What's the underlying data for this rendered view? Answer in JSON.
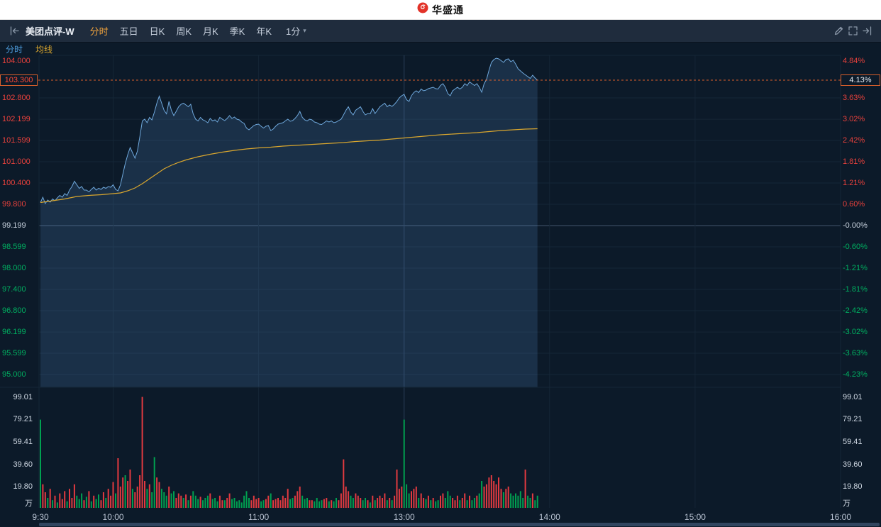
{
  "header": {
    "brand": "华盛通"
  },
  "toolbar": {
    "stock_name": "美团点评-W",
    "tabs": [
      {
        "label": "分时",
        "active": true
      },
      {
        "label": "五日"
      },
      {
        "label": "日K"
      },
      {
        "label": "周K"
      },
      {
        "label": "月K"
      },
      {
        "label": "季K"
      },
      {
        "label": "年K"
      }
    ],
    "period": "1分"
  },
  "legend": {
    "items": [
      {
        "label": "分时",
        "color": "#4e9ddd"
      },
      {
        "label": "均线",
        "color": "#d9a62e"
      }
    ]
  },
  "axes": {
    "prices": [
      {
        "value": 104.0,
        "text": "104.000"
      },
      {
        "value": 102.8,
        "text": "102.800"
      },
      {
        "value": 102.199,
        "text": "102.199"
      },
      {
        "value": 101.599,
        "text": "101.599"
      },
      {
        "value": 101.0,
        "text": "101.000"
      },
      {
        "value": 100.4,
        "text": "100.400"
      },
      {
        "value": 99.8,
        "text": "99.800"
      },
      {
        "value": 99.199,
        "text": "99.199"
      },
      {
        "value": 98.599,
        "text": "98.599"
      },
      {
        "value": 98.0,
        "text": "98.000"
      },
      {
        "value": 97.4,
        "text": "97.400"
      },
      {
        "value": 96.8,
        "text": "96.800"
      },
      {
        "value": 96.199,
        "text": "96.199"
      },
      {
        "value": 95.599,
        "text": "95.599"
      },
      {
        "value": 95.0,
        "text": "95.000"
      }
    ],
    "pcts": [
      "4.84%",
      "3.63%",
      "3.02%",
      "2.42%",
      "1.81%",
      "1.21%",
      "0.60%",
      "-0.00%",
      "-0.60%",
      "-1.21%",
      "-1.81%",
      "-2.42%",
      "-3.02%",
      "-3.63%",
      "-4.23%"
    ],
    "current": {
      "price": 103.3,
      "price_text": "103.300",
      "pct_text": "4.13%"
    },
    "volume": {
      "values": [
        99.01,
        79.21,
        59.41,
        39.6,
        19.8
      ],
      "texts": [
        "99.01",
        "79.21",
        "59.41",
        "39.60",
        "19.80"
      ],
      "unit": "万"
    },
    "times": [
      {
        "label": "9:30",
        "t": 0
      },
      {
        "label": "10:00",
        "t": 30
      },
      {
        "label": "11:00",
        "t": 90
      },
      {
        "label": "13:00",
        "t": 150
      },
      {
        "label": "14:00",
        "t": 210
      },
      {
        "label": "15:00",
        "t": 270
      },
      {
        "label": "16:00",
        "t": 330
      }
    ]
  },
  "chart_data": {
    "type": "line",
    "title": "美团点评-W 分时",
    "prev_close": 99.199,
    "ylim": [
      95.0,
      104.0
    ],
    "minutes_total": 330,
    "volume_unit": "万",
    "prices": [
      99.85,
      100.0,
      99.82,
      99.92,
      99.86,
      99.95,
      99.9,
      99.98,
      100.05,
      100.0,
      100.1,
      100.05,
      100.2,
      100.3,
      100.45,
      100.35,
      100.25,
      100.3,
      100.2,
      100.2,
      100.15,
      100.22,
      100.28,
      100.2,
      100.25,
      100.22,
      100.28,
      100.25,
      100.3,
      100.28,
      100.35,
      100.22,
      100.18,
      100.35,
      100.65,
      100.95,
      101.2,
      101.4,
      101.25,
      101.1,
      101.3,
      101.7,
      102.15,
      102.2,
      102.1,
      102.25,
      102.18,
      102.4,
      102.65,
      102.85,
      102.65,
      102.45,
      102.35,
      102.7,
      102.45,
      102.3,
      102.42,
      102.55,
      102.62,
      102.65,
      102.6,
      102.55,
      102.62,
      102.35,
      102.2,
      102.15,
      102.25,
      102.18,
      102.15,
      102.1,
      102.22,
      102.15,
      102.18,
      102.12,
      102.25,
      102.2,
      102.16,
      102.22,
      102.3,
      102.22,
      102.26,
      102.2,
      102.18,
      102.12,
      102.08,
      101.95,
      101.9,
      101.96,
      102.02,
      102.05,
      102.06,
      102.0,
      101.95,
      102.0,
      102.02,
      101.88,
      101.92,
      102.0,
      102.06,
      102.08,
      102.1,
      102.15,
      102.2,
      102.14,
      102.16,
      102.22,
      102.3,
      102.42,
      102.25,
      102.18,
      102.15,
      102.2,
      102.18,
      102.12,
      102.1,
      102.06,
      102.05,
      102.1,
      102.15,
      102.12,
      102.15,
      102.1,
      102.12,
      102.16,
      102.2,
      102.32,
      102.45,
      102.55,
      102.4,
      102.32,
      102.45,
      102.5,
      102.55,
      102.42,
      102.32,
      102.36,
      102.35,
      102.5,
      102.36,
      102.45,
      102.55,
      102.6,
      102.65,
      102.55,
      102.6,
      102.56,
      102.62,
      102.7,
      102.8,
      102.86,
      102.9,
      102.75,
      102.7,
      102.86,
      102.95,
      103.0,
      102.95,
      103.05,
      103.0,
      103.02,
      103.06,
      103.08,
      103.1,
      103.06,
      103.05,
      103.15,
      103.2,
      103.1,
      102.92,
      102.86,
      103.0,
      103.05,
      103.1,
      103.05,
      103.1,
      103.2,
      103.15,
      103.25,
      103.2,
      103.15,
      103.2,
      103.1,
      102.96,
      103.2,
      103.32,
      103.58,
      103.8,
      103.88,
      103.92,
      103.9,
      103.85,
      103.8,
      103.88,
      103.9,
      103.82,
      103.86,
      103.75,
      103.62,
      103.56,
      103.5,
      103.45,
      103.4,
      103.35,
      103.44,
      103.36,
      103.3
    ],
    "avg": [
      [
        0,
        99.85
      ],
      [
        5,
        99.9
      ],
      [
        10,
        99.95
      ],
      [
        15,
        100.02
      ],
      [
        20,
        100.05
      ],
      [
        25,
        100.07
      ],
      [
        30,
        100.1
      ],
      [
        33,
        100.12
      ],
      [
        36,
        100.18
      ],
      [
        39,
        100.26
      ],
      [
        42,
        100.38
      ],
      [
        45,
        100.52
      ],
      [
        48,
        100.66
      ],
      [
        51,
        100.8
      ],
      [
        54,
        100.9
      ],
      [
        57,
        100.98
      ],
      [
        60,
        101.05
      ],
      [
        65,
        101.14
      ],
      [
        70,
        101.21
      ],
      [
        75,
        101.27
      ],
      [
        80,
        101.32
      ],
      [
        85,
        101.36
      ],
      [
        90,
        101.39
      ],
      [
        95,
        101.41
      ],
      [
        100,
        101.44
      ],
      [
        105,
        101.46
      ],
      [
        110,
        101.48
      ],
      [
        115,
        101.5
      ],
      [
        120,
        101.52
      ],
      [
        125,
        101.54
      ],
      [
        130,
        101.57
      ],
      [
        135,
        101.59
      ],
      [
        140,
        101.61
      ],
      [
        145,
        101.64
      ],
      [
        150,
        101.67
      ],
      [
        155,
        101.7
      ],
      [
        160,
        101.73
      ],
      [
        165,
        101.76
      ],
      [
        170,
        101.78
      ],
      [
        175,
        101.8
      ],
      [
        180,
        101.82
      ],
      [
        185,
        101.85
      ],
      [
        190,
        101.88
      ],
      [
        195,
        101.9
      ],
      [
        200,
        101.92
      ],
      [
        205,
        101.93
      ]
    ],
    "volumes": [
      [
        79,
        "d"
      ],
      [
        22,
        "u"
      ],
      [
        15,
        "u"
      ],
      [
        10,
        "d"
      ],
      [
        18,
        "u"
      ],
      [
        8,
        "d"
      ],
      [
        12,
        "u"
      ],
      [
        6,
        "d"
      ],
      [
        14,
        "u"
      ],
      [
        9,
        "u"
      ],
      [
        16,
        "u"
      ],
      [
        7,
        "d"
      ],
      [
        18,
        "u"
      ],
      [
        10,
        "u"
      ],
      [
        22,
        "u"
      ],
      [
        12,
        "d"
      ],
      [
        9,
        "d"
      ],
      [
        14,
        "d"
      ],
      [
        8,
        "u"
      ],
      [
        11,
        "d"
      ],
      [
        16,
        "u"
      ],
      [
        7,
        "d"
      ],
      [
        12,
        "u"
      ],
      [
        9,
        "d"
      ],
      [
        13,
        "d"
      ],
      [
        8,
        "u"
      ],
      [
        15,
        "u"
      ],
      [
        10,
        "d"
      ],
      [
        18,
        "u"
      ],
      [
        12,
        "u"
      ],
      [
        24,
        "u"
      ],
      [
        14,
        "d"
      ],
      [
        45,
        "u"
      ],
      [
        20,
        "u"
      ],
      [
        28,
        "u"
      ],
      [
        30,
        "d"
      ],
      [
        25,
        "u"
      ],
      [
        35,
        "u"
      ],
      [
        18,
        "d"
      ],
      [
        15,
        "u"
      ],
      [
        20,
        "u"
      ],
      [
        30,
        "u"
      ],
      [
        99,
        "u"
      ],
      [
        25,
        "u"
      ],
      [
        18,
        "d"
      ],
      [
        22,
        "u"
      ],
      [
        15,
        "d"
      ],
      [
        46,
        "d"
      ],
      [
        28,
        "u"
      ],
      [
        24,
        "u"
      ],
      [
        18,
        "d"
      ],
      [
        15,
        "d"
      ],
      [
        12,
        "d"
      ],
      [
        20,
        "u"
      ],
      [
        14,
        "d"
      ],
      [
        16,
        "d"
      ],
      [
        10,
        "u"
      ],
      [
        14,
        "u"
      ],
      [
        12,
        "u"
      ],
      [
        10,
        "d"
      ],
      [
        13,
        "u"
      ],
      [
        8,
        "d"
      ],
      [
        12,
        "u"
      ],
      [
        16,
        "d"
      ],
      [
        12,
        "d"
      ],
      [
        9,
        "d"
      ],
      [
        11,
        "u"
      ],
      [
        8,
        "d"
      ],
      [
        10,
        "d"
      ],
      [
        12,
        "d"
      ],
      [
        14,
        "u"
      ],
      [
        9,
        "d"
      ],
      [
        10,
        "d"
      ],
      [
        7,
        "d"
      ],
      [
        12,
        "u"
      ],
      [
        8,
        "u"
      ],
      [
        8,
        "d"
      ],
      [
        10,
        "u"
      ],
      [
        14,
        "u"
      ],
      [
        9,
        "d"
      ],
      [
        10,
        "d"
      ],
      [
        7,
        "d"
      ],
      [
        8,
        "d"
      ],
      [
        6,
        "d"
      ],
      [
        12,
        "d"
      ],
      [
        16,
        "d"
      ],
      [
        10,
        "d"
      ],
      [
        8,
        "u"
      ],
      [
        12,
        "u"
      ],
      [
        9,
        "u"
      ],
      [
        10,
        "u"
      ],
      [
        7,
        "d"
      ],
      [
        8,
        "d"
      ],
      [
        9,
        "u"
      ],
      [
        12,
        "u"
      ],
      [
        14,
        "d"
      ],
      [
        8,
        "u"
      ],
      [
        9,
        "u"
      ],
      [
        10,
        "u"
      ],
      [
        8,
        "u"
      ],
      [
        12,
        "u"
      ],
      [
        10,
        "u"
      ],
      [
        18,
        "u"
      ],
      [
        9,
        "d"
      ],
      [
        10,
        "d"
      ],
      [
        12,
        "u"
      ],
      [
        16,
        "u"
      ],
      [
        20,
        "u"
      ],
      [
        12,
        "d"
      ],
      [
        9,
        "d"
      ],
      [
        10,
        "d"
      ],
      [
        8,
        "u"
      ],
      [
        8,
        "u"
      ],
      [
        7,
        "d"
      ],
      [
        10,
        "d"
      ],
      [
        7,
        "d"
      ],
      [
        8,
        "d"
      ],
      [
        9,
        "u"
      ],
      [
        10,
        "u"
      ],
      [
        7,
        "d"
      ],
      [
        8,
        "u"
      ],
      [
        7,
        "d"
      ],
      [
        10,
        "d"
      ],
      [
        8,
        "u"
      ],
      [
        14,
        "u"
      ],
      [
        44,
        "u"
      ],
      [
        20,
        "u"
      ],
      [
        16,
        "u"
      ],
      [
        12,
        "d"
      ],
      [
        10,
        "d"
      ],
      [
        14,
        "u"
      ],
      [
        12,
        "u"
      ],
      [
        10,
        "u"
      ],
      [
        8,
        "d"
      ],
      [
        10,
        "d"
      ],
      [
        8,
        "u"
      ],
      [
        6,
        "d"
      ],
      [
        12,
        "u"
      ],
      [
        8,
        "d"
      ],
      [
        10,
        "u"
      ],
      [
        12,
        "u"
      ],
      [
        10,
        "u"
      ],
      [
        14,
        "u"
      ],
      [
        8,
        "d"
      ],
      [
        10,
        "u"
      ],
      [
        8,
        "d"
      ],
      [
        12,
        "u"
      ],
      [
        35,
        "u"
      ],
      [
        18,
        "u"
      ],
      [
        20,
        "u"
      ],
      [
        79,
        "d"
      ],
      [
        22,
        "d"
      ],
      [
        14,
        "d"
      ],
      [
        16,
        "u"
      ],
      [
        18,
        "u"
      ],
      [
        20,
        "u"
      ],
      [
        10,
        "d"
      ],
      [
        14,
        "u"
      ],
      [
        10,
        "u"
      ],
      [
        9,
        "d"
      ],
      [
        12,
        "u"
      ],
      [
        8,
        "d"
      ],
      [
        10,
        "u"
      ],
      [
        7,
        "d"
      ],
      [
        8,
        "d"
      ],
      [
        12,
        "u"
      ],
      [
        14,
        "u"
      ],
      [
        10,
        "d"
      ],
      [
        16,
        "d"
      ],
      [
        12,
        "d"
      ],
      [
        10,
        "u"
      ],
      [
        8,
        "u"
      ],
      [
        12,
        "u"
      ],
      [
        8,
        "d"
      ],
      [
        10,
        "u"
      ],
      [
        14,
        "u"
      ],
      [
        8,
        "d"
      ],
      [
        12,
        "u"
      ],
      [
        8,
        "d"
      ],
      [
        10,
        "d"
      ],
      [
        12,
        "u"
      ],
      [
        14,
        "d"
      ],
      [
        25,
        "d"
      ],
      [
        20,
        "u"
      ],
      [
        22,
        "u"
      ],
      [
        28,
        "u"
      ],
      [
        30,
        "u"
      ],
      [
        25,
        "u"
      ],
      [
        22,
        "u"
      ],
      [
        28,
        "u"
      ],
      [
        18,
        "u"
      ],
      [
        15,
        "d"
      ],
      [
        18,
        "u"
      ],
      [
        20,
        "u"
      ],
      [
        14,
        "d"
      ],
      [
        12,
        "d"
      ],
      [
        14,
        "d"
      ],
      [
        12,
        "d"
      ],
      [
        16,
        "d"
      ],
      [
        10,
        "d"
      ],
      [
        35,
        "u"
      ],
      [
        12,
        "d"
      ],
      [
        10,
        "d"
      ],
      [
        14,
        "u"
      ],
      [
        8,
        "d"
      ],
      [
        12,
        "d"
      ]
    ]
  },
  "colors": {
    "up": "#e8413c",
    "down": "#00b061",
    "flat": "#c9d3df",
    "up_bar": "#e23a40",
    "down_bar": "#00a050",
    "line": "#6fa8dc",
    "fill": "rgba(84,138,200,0.20)",
    "avg": "#d9a62e",
    "accent": "#d95f2b",
    "grid": "#152636",
    "grid_strong": "#2b3f5a",
    "prev_close_line": "#44586f",
    "tab_active": "#f0a23c",
    "legend_blue": "#4e9ddd",
    "current_price_text": "#ff4935",
    "current_pct_text": "#e9eef5"
  }
}
